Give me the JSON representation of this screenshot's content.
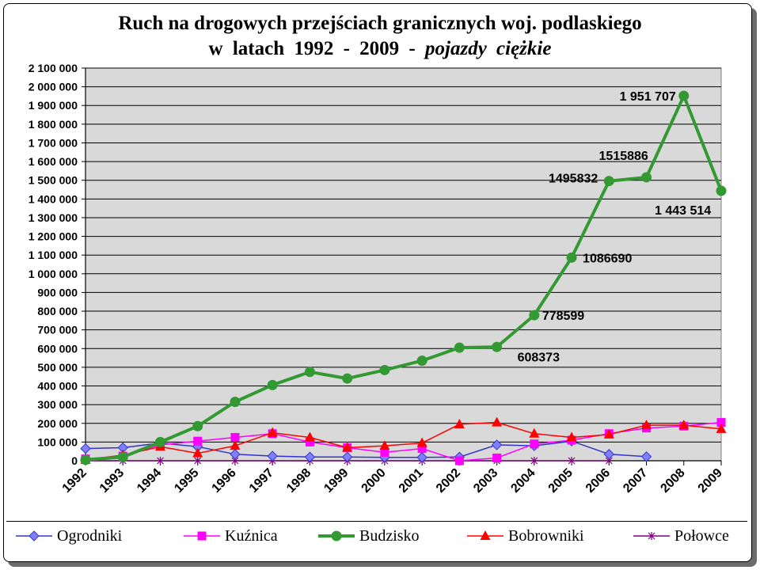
{
  "title": {
    "line1": "Ruch na drogowych przejściach granicznych woj. podlaskiego",
    "line2_prefix": "w latach 1992 - 2009  -",
    "line2_italic": "pojazdy ciężkie"
  },
  "chart_data": {
    "type": "line",
    "grid": true,
    "legend_position": "bottom",
    "ylim": [
      0,
      2100000
    ],
    "y_ticks": [
      "0",
      "100 000",
      "200 000",
      "300 000",
      "400 000",
      "500 000",
      "600 000",
      "700 000",
      "800 000",
      "900 000",
      "1 000 000",
      "1 100 000",
      "1 200 000",
      "1 300 000",
      "1 400 000",
      "1 500 000",
      "1 600 000",
      "1 700 000",
      "1 800 000",
      "1 900 000",
      "2 000 000",
      "2 100 000"
    ],
    "categories": [
      "1992",
      "1993",
      "1994",
      "1995",
      "1996",
      "1997",
      "1998",
      "1999",
      "2000",
      "2001",
      "2002",
      "2003",
      "2004",
      "2005",
      "2006",
      "2007",
      "2008",
      "2009"
    ],
    "series": [
      {
        "name": "Ogrodniki",
        "color": "#3333cc",
        "marker": "diamond",
        "values": [
          65000,
          70000,
          95000,
          75000,
          35000,
          25000,
          20000,
          20000,
          18000,
          18000,
          20000,
          85000,
          80000,
          105000,
          35000,
          22000,
          null,
          null
        ]
      },
      {
        "name": "Kuźnica",
        "color": "#ff00ff",
        "marker": "square",
        "values": [
          10000,
          25000,
          85000,
          105000,
          125000,
          145000,
          100000,
          70000,
          45000,
          65000,
          0,
          15000,
          90000,
          110000,
          145000,
          175000,
          185000,
          205000
        ]
      },
      {
        "name": "Budzisko",
        "color": "#339933",
        "marker": "circle",
        "values": [
          5000,
          20000,
          100000,
          185000,
          315000,
          405000,
          475000,
          440000,
          485000,
          535000,
          605000,
          608373,
          778599,
          1086690,
          1495832,
          1515886,
          1951707,
          1443514
        ]
      },
      {
        "name": "Bobrowniki",
        "color": "#ff0000",
        "marker": "triangle",
        "values": [
          5000,
          30000,
          75000,
          40000,
          80000,
          150000,
          125000,
          70000,
          80000,
          95000,
          195000,
          205000,
          145000,
          125000,
          140000,
          190000,
          190000,
          170000
        ]
      },
      {
        "name": "Połowce",
        "color": "#800080",
        "marker": "star",
        "values": [
          0,
          0,
          0,
          0,
          0,
          0,
          0,
          0,
          0,
          0,
          0,
          0,
          0,
          0,
          0,
          null,
          null,
          null
        ]
      }
    ],
    "data_labels": [
      {
        "series": "Budzisko",
        "category": "2003",
        "text": "608373"
      },
      {
        "series": "Budzisko",
        "category": "2004",
        "text": "778599"
      },
      {
        "series": "Budzisko",
        "category": "2005",
        "text": "1086690"
      },
      {
        "series": "Budzisko",
        "category": "2006",
        "text": "1495832"
      },
      {
        "series": "Budzisko",
        "category": "2007",
        "text": "1515886"
      },
      {
        "series": "Budzisko",
        "category": "2008",
        "text": "1 951 707"
      },
      {
        "series": "Budzisko",
        "category": "2009",
        "text": "1 443 514"
      }
    ]
  }
}
